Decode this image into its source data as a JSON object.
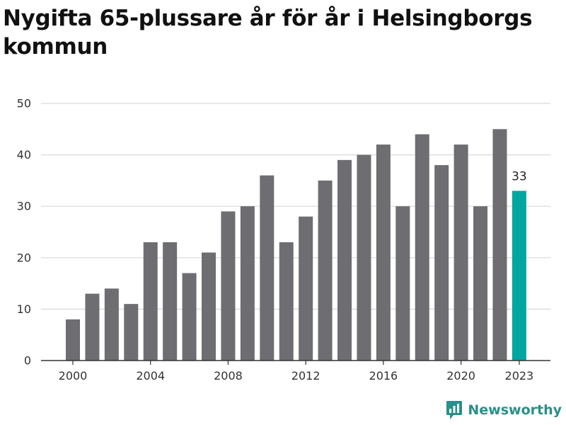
{
  "title": "Nygifta 65-plussare år för år i Helsingborgs kommun",
  "brand": {
    "name": "Newsworthy",
    "icon": "newsworthy-logo-icon"
  },
  "colors": {
    "bar": "#6d6d72",
    "highlight": "#00a6a0",
    "grid": "#d9d9d9",
    "axis": "#333333",
    "brand": "#2a8f8a"
  },
  "chart_data": {
    "type": "bar",
    "title": "Nygifta 65-plussare år för år i Helsingborgs kommun",
    "xlabel": "",
    "ylabel": "",
    "categories": [
      "2000",
      "2001",
      "2002",
      "2003",
      "2004",
      "2005",
      "2006",
      "2007",
      "2008",
      "2009",
      "2010",
      "2011",
      "2012",
      "2013",
      "2014",
      "2015",
      "2016",
      "2017",
      "2018",
      "2019",
      "2020",
      "2021",
      "2022",
      "2023"
    ],
    "values": [
      8,
      13,
      14,
      11,
      23,
      23,
      17,
      21,
      29,
      30,
      36,
      23,
      28,
      35,
      39,
      40,
      42,
      30,
      44,
      38,
      42,
      30,
      45,
      33
    ],
    "x_tick_labels": [
      "2000",
      "2004",
      "2008",
      "2012",
      "2016",
      "2020",
      "2023"
    ],
    "y_ticks": [
      0,
      10,
      20,
      30,
      40,
      50
    ],
    "ylim": [
      0,
      50
    ],
    "grid": true,
    "highlight": {
      "category": "2023",
      "value": 33,
      "label": "33"
    }
  }
}
